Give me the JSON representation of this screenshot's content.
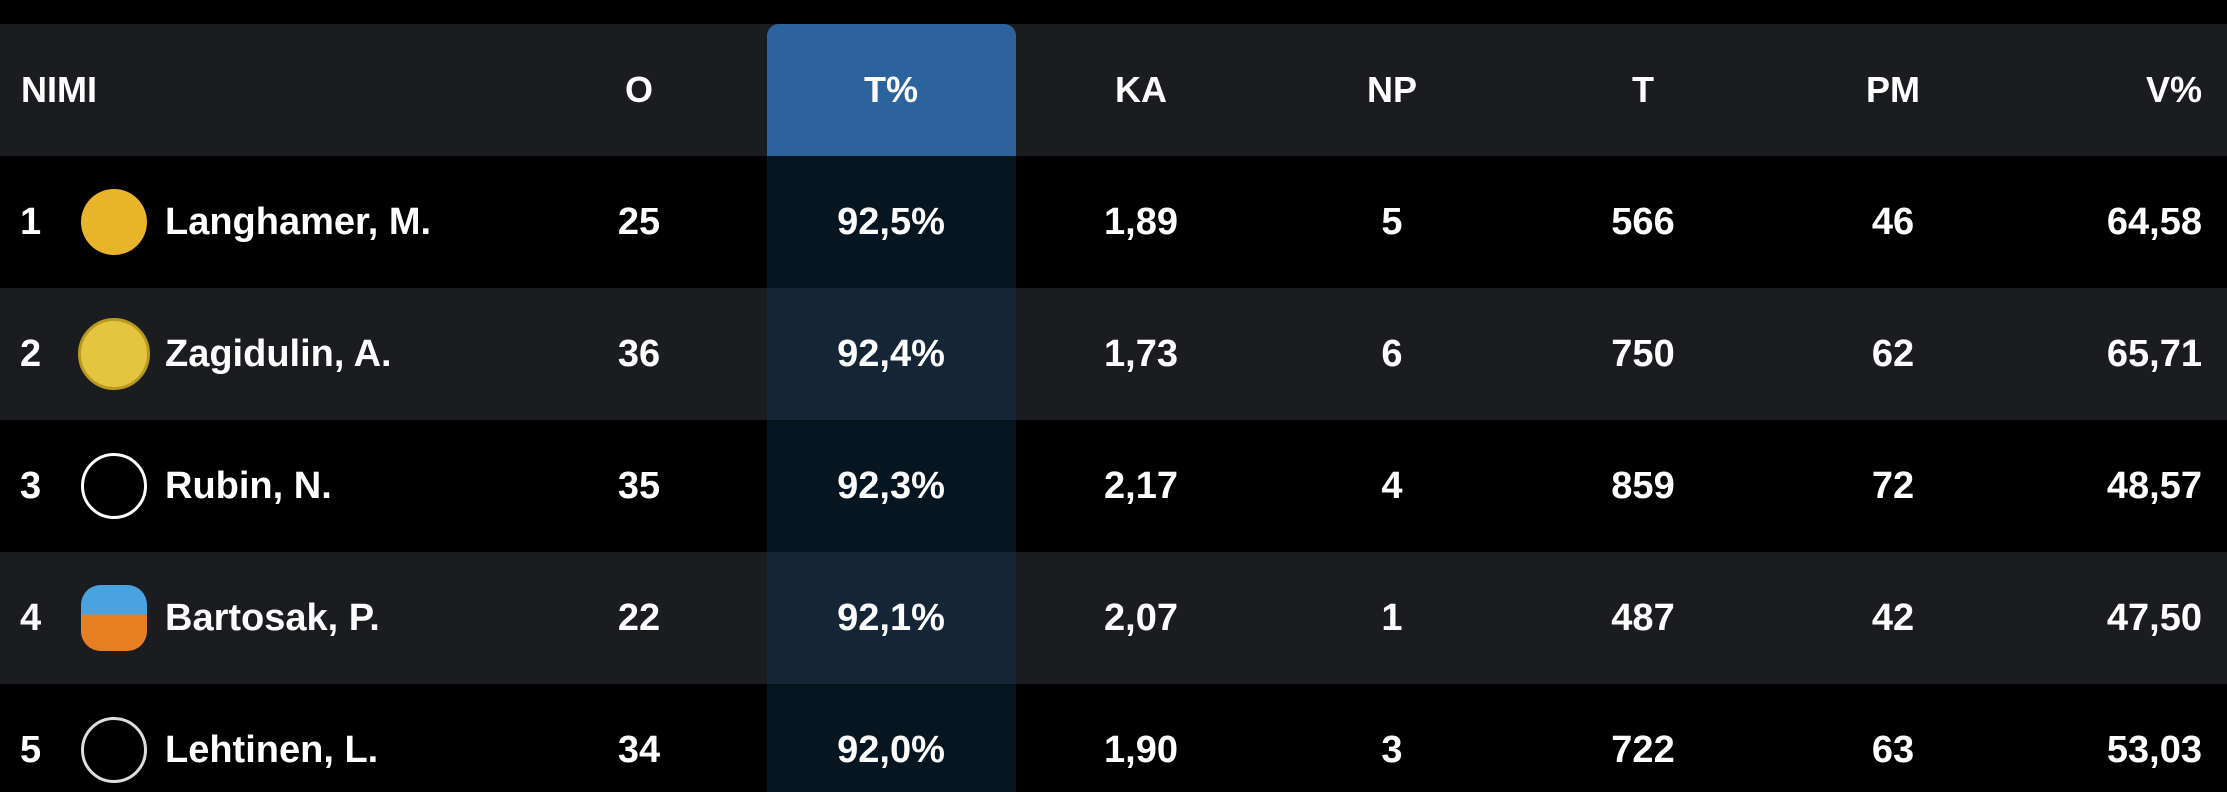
{
  "table": {
    "headers": [
      "NIMI",
      "O",
      "T%",
      "KA",
      "NP",
      "T",
      "PM",
      "V%"
    ],
    "rows": [
      [
        "1",
        "Langhamer, M.",
        "25",
        "92,5%",
        "1,89",
        "5",
        "566",
        "46",
        "64,58"
      ],
      [
        "2",
        "Zagidulin, A.",
        "36",
        "92,4%",
        "1,73",
        "6",
        "750",
        "62",
        "65,71"
      ],
      [
        "3",
        "Rubin, N.",
        "35",
        "92,3%",
        "2,17",
        "4",
        "859",
        "72",
        "48,57"
      ],
      [
        "4",
        "Bartosak, P.",
        "22",
        "92,1%",
        "2,07",
        "1",
        "487",
        "42",
        "47,50"
      ],
      [
        "5",
        "Lehtinen, L.",
        "34",
        "92,0%",
        "1,90",
        "3",
        "722",
        "63",
        "53,03"
      ]
    ]
  }
}
